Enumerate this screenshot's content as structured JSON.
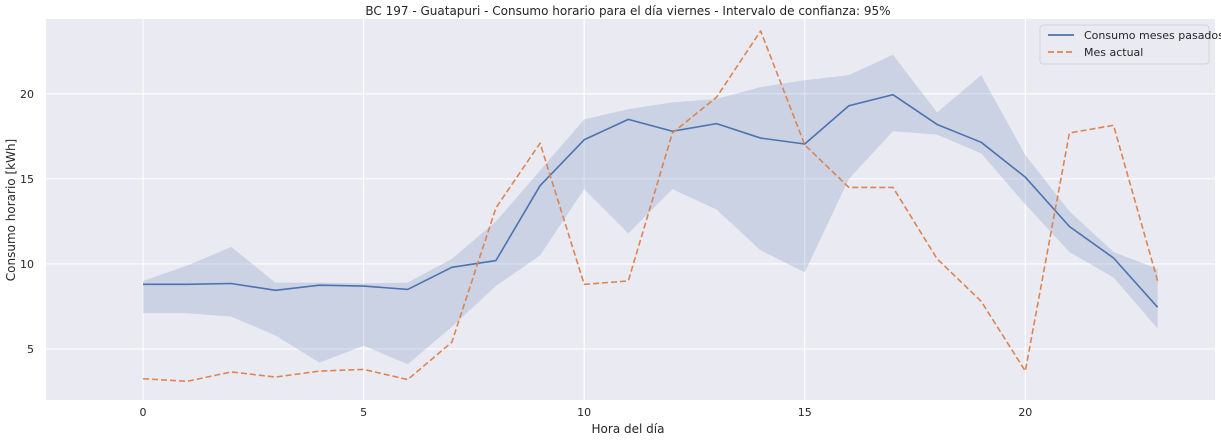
{
  "chart_data": {
    "type": "line",
    "title": "BC 197 - Guatapuri - Consumo horario para el día viernes - Intervalo de confianza: 95%",
    "xlabel": "Hora del día",
    "ylabel": "Consumo horario [kWh]",
    "xlim": [
      -2.2,
      24.3
    ],
    "ylim": [
      2.0,
      24.4
    ],
    "x_ticks": [
      0,
      5,
      10,
      15,
      20
    ],
    "y_ticks": [
      5,
      10,
      15,
      20
    ],
    "grid": true,
    "background": "#EAEAF2",
    "legend_position": "upper right",
    "x": [
      0,
      1,
      2,
      3,
      4,
      5,
      6,
      7,
      8,
      9,
      10,
      11,
      12,
      13,
      14,
      15,
      16,
      17,
      18,
      19,
      20,
      21,
      22,
      23
    ],
    "series": [
      {
        "name": "Consumo meses pasados",
        "color": "#4C72B0",
        "style": "solid",
        "values": [
          8.8,
          8.8,
          8.85,
          8.45,
          8.75,
          8.7,
          8.5,
          9.8,
          10.2,
          14.6,
          17.3,
          18.5,
          17.8,
          18.25,
          17.4,
          17.05,
          19.3,
          19.95,
          18.2,
          17.15,
          15.1,
          12.2,
          10.35,
          7.45
        ],
        "ci_lower": [
          7.1,
          7.1,
          6.9,
          5.8,
          4.2,
          5.2,
          4.1,
          6.3,
          8.7,
          10.5,
          14.4,
          11.8,
          14.4,
          13.2,
          10.8,
          9.5,
          15.0,
          17.8,
          17.6,
          16.5,
          13.5,
          10.7,
          9.2,
          6.2
        ],
        "ci_upper": [
          9.0,
          9.9,
          11.0,
          8.9,
          8.9,
          8.85,
          8.9,
          10.3,
          12.5,
          15.5,
          18.5,
          19.1,
          19.5,
          19.7,
          20.4,
          20.8,
          21.1,
          22.3,
          18.9,
          21.1,
          16.4,
          13.1,
          10.7,
          9.7
        ]
      },
      {
        "name": "Mes actual",
        "color": "#DD8452",
        "style": "dashed",
        "values": [
          3.25,
          3.1,
          3.65,
          3.35,
          3.7,
          3.8,
          3.2,
          5.4,
          13.3,
          17.1,
          8.8,
          9.0,
          17.7,
          19.8,
          23.7,
          17.0,
          14.5,
          14.5,
          10.3,
          7.8,
          3.7,
          17.7,
          18.15,
          9.0
        ]
      }
    ]
  }
}
